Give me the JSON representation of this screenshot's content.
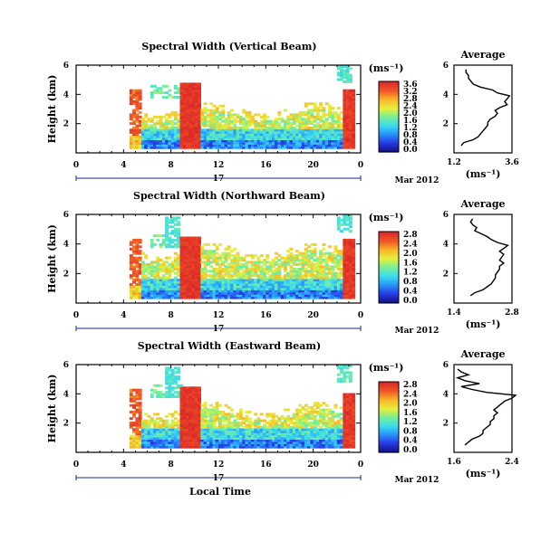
{
  "chart_data": [
    {
      "type": "heatmap",
      "title": "Spectral Width (Vertical Beam)",
      "ylabel": "Height (km)",
      "xlim": [
        0,
        24
      ],
      "ylim": [
        0,
        6
      ],
      "xticks": [
        "0",
        "4",
        "8",
        "12",
        "16",
        "20",
        "0"
      ],
      "yticks": [
        "2",
        "4",
        "6"
      ],
      "date_tick": "17",
      "date_label": "Mar 2012",
      "colorbar": {
        "unit": "(ms⁻¹)",
        "ticks": [
          "3.6",
          "3.2",
          "2.8",
          "2.4",
          "2.0",
          "1.6",
          "1.2",
          "0.8",
          "0.4",
          "0.0"
        ],
        "vmin": 0.0,
        "vmax": 3.6
      },
      "average": {
        "title": "Average",
        "xlabel": "(ms⁻¹)",
        "xticks": [
          "1.2",
          "3.6"
        ],
        "xlim": [
          1.2,
          3.6
        ],
        "yticks": [
          "2",
          "4",
          "6"
        ],
        "ylim": [
          0,
          6
        ],
        "height": [
          0.5,
          0.7,
          0.9,
          1.1,
          1.3,
          1.5,
          1.7,
          1.9,
          2.1,
          2.3,
          2.5,
          2.7,
          2.9,
          3.1,
          3.3,
          3.5,
          3.7,
          3.9,
          4.1,
          4.3,
          4.5,
          4.7,
          4.9,
          5.1,
          5.3,
          5.5,
          5.7
        ],
        "width": [
          1.5,
          1.6,
          2.0,
          2.2,
          2.3,
          2.4,
          2.5,
          2.6,
          2.6,
          2.7,
          2.9,
          3.0,
          2.9,
          3.1,
          3.4,
          3.3,
          3.4,
          3.5,
          3.0,
          2.8,
          2.3,
          2.0,
          1.9,
          1.8,
          1.8,
          1.7,
          1.7
        ]
      }
    },
    {
      "type": "heatmap",
      "title": "Spectral Width (Northward Beam)",
      "ylabel": "Height (km)",
      "xlim": [
        0,
        24
      ],
      "ylim": [
        0,
        6
      ],
      "xticks": [
        "0",
        "4",
        "8",
        "12",
        "16",
        "20",
        "0"
      ],
      "yticks": [
        "2",
        "4",
        "6"
      ],
      "date_tick": "17",
      "date_label": "Mar 2012",
      "colorbar": {
        "unit": "(ms⁻¹)",
        "ticks": [
          "2.8",
          "2.4",
          "2.0",
          "1.6",
          "1.2",
          "0.8",
          "0.4",
          "0.0"
        ],
        "vmin": 0.0,
        "vmax": 2.8
      },
      "average": {
        "title": "Average",
        "xlabel": "(ms⁻¹)",
        "xticks": [
          "1.4",
          "2.8"
        ],
        "xlim": [
          1.4,
          2.8
        ],
        "yticks": [
          "2",
          "4",
          "6"
        ],
        "ylim": [
          0,
          6
        ],
        "height": [
          0.5,
          0.7,
          0.9,
          1.1,
          1.3,
          1.5,
          1.7,
          1.9,
          2.1,
          2.3,
          2.5,
          2.7,
          2.9,
          3.1,
          3.3,
          3.5,
          3.7,
          3.9,
          4.1,
          4.3,
          4.5,
          4.7,
          4.9,
          5.1,
          5.3,
          5.5,
          5.7
        ],
        "width": [
          1.8,
          1.9,
          2.1,
          2.2,
          2.3,
          2.35,
          2.4,
          2.4,
          2.45,
          2.5,
          2.5,
          2.6,
          2.5,
          2.55,
          2.6,
          2.5,
          2.6,
          2.7,
          2.45,
          2.3,
          2.2,
          2.05,
          1.9,
          1.95,
          1.85,
          1.8,
          1.85
        ]
      }
    },
    {
      "type": "heatmap",
      "title": "Spectral Width (Eastward Beam)",
      "ylabel": "Height (km)",
      "xlabel": "Local Time",
      "xlim": [
        0,
        24
      ],
      "ylim": [
        0,
        6
      ],
      "xticks": [
        "0",
        "4",
        "8",
        "12",
        "16",
        "20",
        "0"
      ],
      "yticks": [
        "2",
        "4",
        "6"
      ],
      "date_tick": "17",
      "date_label": "Mar 2012",
      "colorbar": {
        "unit": "(ms⁻¹)",
        "ticks": [
          "2.8",
          "2.4",
          "2.0",
          "1.6",
          "1.2",
          "0.8",
          "0.4",
          "0.0"
        ],
        "vmin": 0.0,
        "vmax": 2.8
      },
      "average": {
        "title": "Average",
        "xlabel": "(ms⁻¹)",
        "xticks": [
          "1.6",
          "2.4"
        ],
        "xlim": [
          1.6,
          2.4
        ],
        "yticks": [
          "2",
          "4",
          "6"
        ],
        "ylim": [
          0,
          6
        ],
        "height": [
          0.5,
          0.7,
          0.9,
          1.1,
          1.3,
          1.5,
          1.7,
          1.9,
          2.1,
          2.3,
          2.5,
          2.7,
          2.9,
          3.1,
          3.3,
          3.5,
          3.7,
          3.9,
          4.1,
          4.3,
          4.5,
          4.7,
          4.9,
          5.1,
          5.3,
          5.5,
          5.7
        ],
        "width": [
          1.75,
          1.8,
          1.85,
          1.95,
          2.0,
          2.0,
          2.05,
          2.1,
          2.1,
          2.15,
          2.15,
          2.2,
          2.15,
          2.2,
          2.25,
          2.3,
          2.4,
          2.45,
          2.05,
          1.85,
          1.7,
          1.95,
          1.75,
          1.65,
          1.8,
          1.7,
          1.65
        ]
      }
    }
  ]
}
